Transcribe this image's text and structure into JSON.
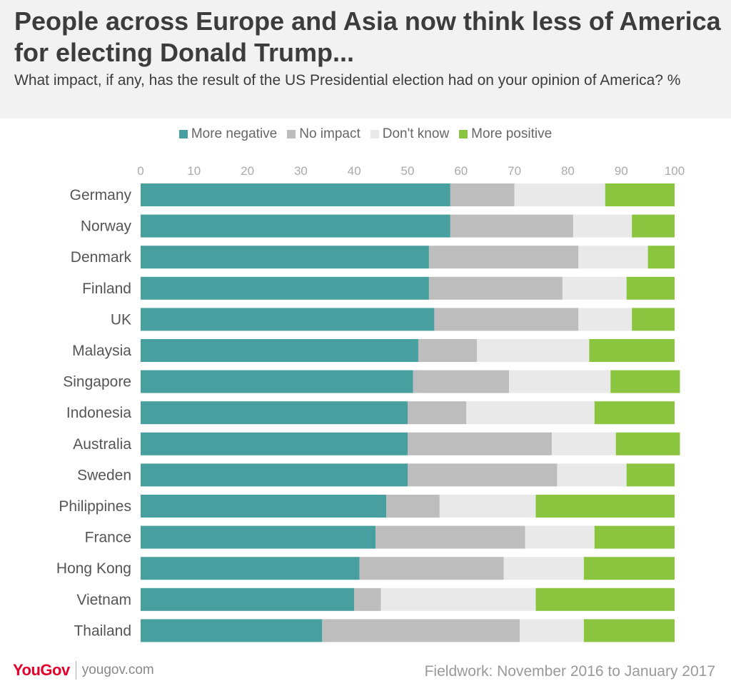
{
  "header": {
    "title": "People across Europe and Asia now think less of America for electing Donald Trump...",
    "subtitle": "What impact, if any, has the result of the US Presidential election had on your opinion of America? %"
  },
  "legend": [
    {
      "label": "More negative",
      "color": "#479f9f"
    },
    {
      "label": "No impact",
      "color": "#bdbdbd"
    },
    {
      "label": "Don't know",
      "color": "#e9e9e9"
    },
    {
      "label": "More positive",
      "color": "#8bc53f"
    }
  ],
  "footer": {
    "brand": "YouGov",
    "url": "yougov.com",
    "fieldwork": "Fieldwork: November 2016 to January 2017"
  },
  "chart_data": {
    "type": "bar",
    "orientation": "horizontal",
    "stacked": true,
    "xlim": [
      0,
      100
    ],
    "xticks": [
      0,
      10,
      20,
      30,
      40,
      50,
      60,
      70,
      80,
      90,
      100
    ],
    "categories": [
      "Germany",
      "Norway",
      "Denmark",
      "Finland",
      "UK",
      "Malaysia",
      "Singapore",
      "Indonesia",
      "Australia",
      "Sweden",
      "Philippines",
      "France",
      "Hong Kong",
      "Vietnam",
      "Thailand"
    ],
    "series": [
      {
        "name": "More negative",
        "color": "#479f9f",
        "values": [
          58,
          58,
          54,
          54,
          55,
          52,
          51,
          50,
          50,
          50,
          46,
          44,
          41,
          40,
          34
        ]
      },
      {
        "name": "No impact",
        "color": "#bdbdbd",
        "values": [
          12,
          23,
          28,
          25,
          27,
          11,
          18,
          11,
          27,
          28,
          10,
          28,
          27,
          5,
          37
        ]
      },
      {
        "name": "Don't know",
        "color": "#e9e9e9",
        "values": [
          17,
          11,
          13,
          12,
          10,
          21,
          19,
          24,
          12,
          13,
          18,
          13,
          15,
          29,
          12
        ]
      },
      {
        "name": "More positive",
        "color": "#8bc53f",
        "values": [
          13,
          8,
          5,
          9,
          8,
          16,
          13,
          15,
          12,
          9,
          26,
          15,
          17,
          26,
          17
        ]
      }
    ],
    "legend_position": "top"
  }
}
